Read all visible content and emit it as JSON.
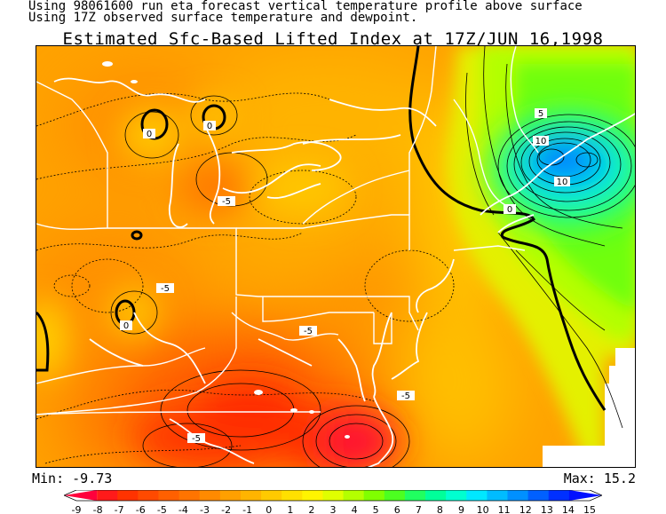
{
  "header": {
    "line1": "Using 98061600 run eta forecast vertical temperature profile above surface",
    "line2": "Using 17Z observed surface temperature and dewpoint.",
    "title": "Estimated Sfc-Based Lifted Index at 17Z/JUN 16,1998"
  },
  "stats": {
    "min": "Min: -9.73",
    "max": "Max: 15.2"
  },
  "contour_labels": [
    {
      "text": "0"
    },
    {
      "text": "0"
    },
    {
      "text": "-5"
    },
    {
      "text": "-5"
    },
    {
      "text": "0"
    },
    {
      "text": "-5"
    },
    {
      "text": "-5"
    },
    {
      "text": "-5"
    },
    {
      "text": "5"
    },
    {
      "text": "10"
    },
    {
      "text": "10"
    },
    {
      "text": "0"
    }
  ],
  "colorbar": {
    "ticks": [
      "-9",
      "-8",
      "-7",
      "-6",
      "-5",
      "-4",
      "-3",
      "-2",
      "-1",
      "0",
      "1",
      "2",
      "3",
      "4",
      "5",
      "6",
      "7",
      "8",
      "9",
      "10",
      "11",
      "12",
      "13",
      "14",
      "15"
    ],
    "colors": [
      "#ff003c",
      "#ff1a1a",
      "#ff3300",
      "#ff4a00",
      "#ff6000",
      "#ff7400",
      "#ff8a00",
      "#ffa000",
      "#ffb400",
      "#ffca00",
      "#ffe000",
      "#fff400",
      "#e0ff00",
      "#b4ff00",
      "#80ff00",
      "#4cff20",
      "#20ff60",
      "#00ff9a",
      "#00ffd0",
      "#00e8ff",
      "#00bcff",
      "#0090ff",
      "#0060ff",
      "#0030ff",
      "#0010ff"
    ]
  }
}
